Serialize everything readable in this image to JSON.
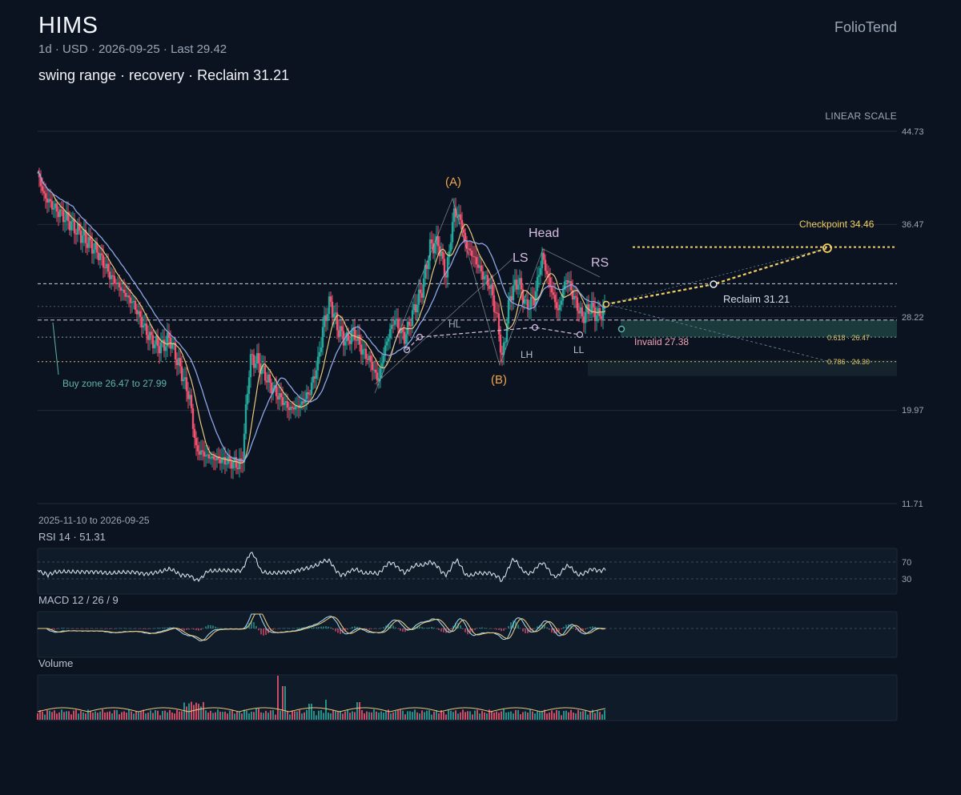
{
  "header": {
    "ticker": "HIMS",
    "meta": "1d · USD · 2026-09-25 · Last 29.42",
    "subtitle": "swing range · recovery · Reclaim 31.21",
    "brand": "FolioTend",
    "scale_label": "LINEAR SCALE"
  },
  "colors": {
    "background": "#0b1320",
    "up": "#26a69a",
    "down": "#ef5370",
    "ma_fast": "#e8c77e",
    "ma_slow": "#8ea7e6",
    "accent_orange": "#f0a44a",
    "pattern": "#d7bde2",
    "projection": "#f2cf63",
    "zone": "#1f4a45"
  },
  "chart_data": {
    "type": "candlestick",
    "date_range": "2025-11-10 to 2026-09-25",
    "y_ticks": [
      44.73,
      36.47,
      28.22,
      19.97,
      11.71
    ],
    "ylim": [
      11.71,
      44.73
    ],
    "last_price": 29.42,
    "annotations": {
      "wave_a": "(A)",
      "wave_b": "(B)",
      "head": "Head",
      "left_shoulder": "LS",
      "right_shoulder": "RS",
      "hl": "HL",
      "lh": "LH",
      "ll": "LL",
      "checkpoint": "Checkpoint 34.46",
      "reclaim": "Reclaim 31.21",
      "invalid": "Invalid 27.38",
      "buy_zone": "Buy zone 26.47 to 27.99",
      "fib_618": "0.618 · 26.47",
      "fib_786": "0.786 · 24.30"
    },
    "levels": {
      "checkpoint": 34.46,
      "reclaim": 31.21,
      "invalid": 27.38,
      "buy_zone": [
        26.47,
        27.99
      ],
      "fib_618": 26.47,
      "fib_786": 24.3
    },
    "rsi": {
      "label": "RSI 14 · 51.31",
      "value": 51.31,
      "levels": [
        70,
        30
      ]
    },
    "macd": {
      "label": "MACD 12 / 26 / 9"
    },
    "volume": {
      "label": "Volume"
    }
  }
}
